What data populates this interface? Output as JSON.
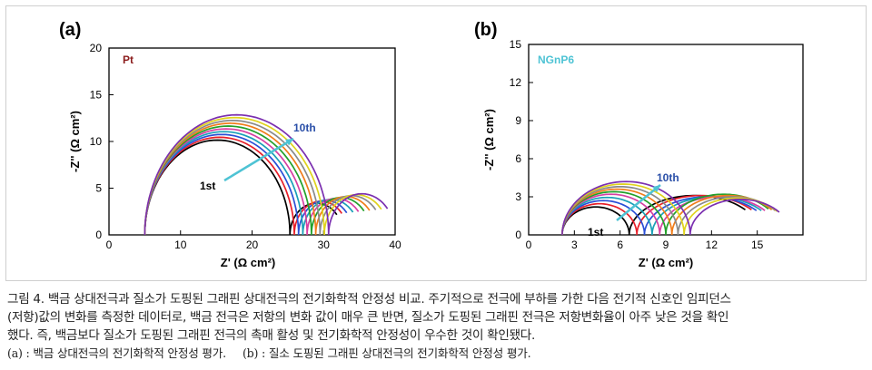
{
  "caption": {
    "line1": "그림 4. 백금 상대전극과 질소가 도핑된 그래핀 상대전극의 전기화학적 안정성 비교. 주기적으로 전극에 부하를 가한 다음 전기적 신호인 임피던스",
    "line2": "(저항)값의 변화를 측정한 데이터로, 백금 전극은 저항의 변화 값이 매우 큰 반면, 질소가 도핑된 그래핀 전극은 저항변화율이 아주 낮은 것을 확인",
    "line3": "했다. 즉, 백금보다 질소가 도핑된 그래핀 전극의 촉매 활성 및 전기화학적 안정성이 우수한 것이 확인됐다.",
    "sub_a": "(a) : 백금 상대전극의 전기화학적 안정성 평가.",
    "sub_b": "(b) : 질소 도핑된 그래핀 상대전극의 전기화학적 안정성 평가."
  },
  "chart_data": [
    {
      "type": "line",
      "panel": "(a)",
      "label": "Pt",
      "label_color": "#8b1c1c",
      "xlabel": "Z' (Ω cm²)",
      "ylabel": "-Z'' (Ω cm²)",
      "xlim": [
        0,
        40
      ],
      "ylim": [
        0,
        20
      ],
      "xticks": [
        0,
        10,
        20,
        30,
        40
      ],
      "yticks": [
        0,
        5,
        10,
        15,
        20
      ],
      "annotations": {
        "first": "1st",
        "last": "10th"
      },
      "series": [
        {
          "color": "#000000",
          "R0": 5.0,
          "R1": 25.3,
          "R2": 32.7,
          "h2": 3.4
        },
        {
          "color": "#e8202a",
          "R0": 5.0,
          "R1": 25.9,
          "R2": 33.4,
          "h2": 3.6
        },
        {
          "color": "#2a4fd6",
          "R0": 5.0,
          "R1": 26.5,
          "R2": 34.1,
          "h2": 3.7
        },
        {
          "color": "#1aa0b8",
          "R0": 5.0,
          "R1": 27.1,
          "R2": 35.0,
          "h2": 3.8
        },
        {
          "color": "#d63fa3",
          "R0": 5.0,
          "R1": 27.7,
          "R2": 35.8,
          "h2": 3.9
        },
        {
          "color": "#23a02a",
          "R0": 5.0,
          "R1": 28.3,
          "R2": 36.6,
          "h2": 4.0
        },
        {
          "color": "#f07d1a",
          "R0": 5.0,
          "R1": 28.9,
          "R2": 37.4,
          "h2": 4.1
        },
        {
          "color": "#8a8a8a",
          "R0": 5.0,
          "R1": 29.5,
          "R2": 38.3,
          "h2": 4.2
        },
        {
          "color": "#e0d31e",
          "R0": 5.0,
          "R1": 30.1,
          "R2": 39.1,
          "h2": 4.3
        },
        {
          "color": "#7b2fb0",
          "R0": 5.0,
          "R1": 30.7,
          "R2": 40.0,
          "h2": 4.4
        }
      ]
    },
    {
      "type": "line",
      "panel": "(b)",
      "label": "NGnP6",
      "label_color": "#4ec3d4",
      "xlabel": "Z' (Ω cm²)",
      "ylabel": "-Z'' (Ω cm²)",
      "xlim": [
        0,
        18
      ],
      "ylim": [
        0,
        15
      ],
      "xticks": [
        0,
        3,
        6,
        9,
        12,
        15
      ],
      "yticks": [
        0,
        3,
        6,
        9,
        12,
        15
      ],
      "annotations": {
        "first": "1st",
        "last": "10th"
      },
      "series": [
        {
          "color": "#000000",
          "R0": 2.2,
          "R1": 6.6,
          "R2": 15.2,
          "h2": 3.1
        },
        {
          "color": "#e8202a",
          "R0": 2.2,
          "R1": 7.1,
          "R2": 15.6,
          "h2": 3.1
        },
        {
          "color": "#2a4fd6",
          "R0": 2.2,
          "R1": 7.6,
          "R2": 15.9,
          "h2": 3.0
        },
        {
          "color": "#1aa0b8",
          "R0": 2.2,
          "R1": 8.1,
          "R2": 16.2,
          "h2": 3.0
        },
        {
          "color": "#d63fa3",
          "R0": 2.2,
          "R1": 8.6,
          "R2": 16.4,
          "h2": 3.0
        },
        {
          "color": "#23a02a",
          "R0": 2.2,
          "R1": 9.0,
          "R2": 16.6,
          "h2": 3.2
        },
        {
          "color": "#f07d1a",
          "R0": 2.2,
          "R1": 9.4,
          "R2": 16.8,
          "h2": 3.1
        },
        {
          "color": "#8a8a8a",
          "R0": 2.2,
          "R1": 9.8,
          "R2": 17.0,
          "h2": 3.0
        },
        {
          "color": "#e0d31e",
          "R0": 2.2,
          "R1": 10.2,
          "R2": 17.1,
          "h2": 2.9
        },
        {
          "color": "#7b2fb0",
          "R0": 2.2,
          "R1": 10.6,
          "R2": 17.2,
          "h2": 2.8
        }
      ]
    }
  ]
}
